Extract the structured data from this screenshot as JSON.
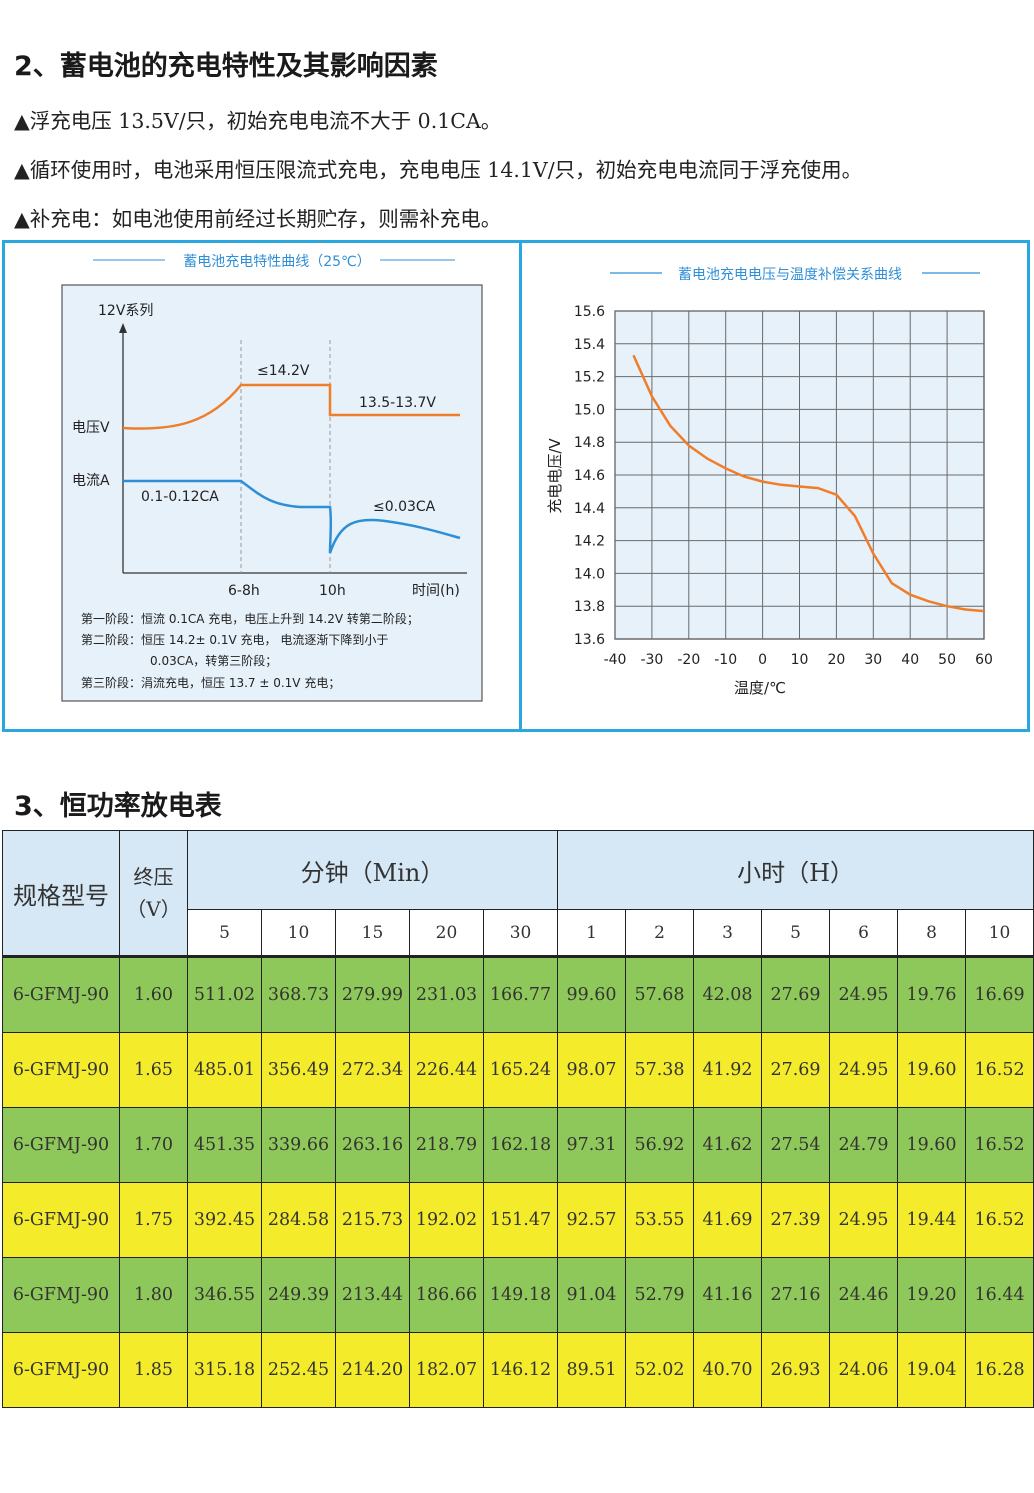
{
  "section2": {
    "title": "2、蓄电池的充电特性及其影响因素",
    "bullets": [
      "▲浮充电压 13.5V/只，初始充电电流不大于 0.1CA。",
      "▲循环使用时，电池采用恒压限流式充电，充电电压 14.1V/只，初始充电电流同于浮充使用。",
      "▲补充电：如电池使用前经过长期贮存，则需补充电。"
    ]
  },
  "chart_data": [
    {
      "type": "line",
      "title": "蓄电池充电特性曲线（25℃）",
      "series_label": "12V系列",
      "ylabels": [
        "电压V",
        "电流A"
      ],
      "xticks": [
        "6-8h",
        "10h"
      ],
      "xlabel": "时间(h)",
      "annotations": [
        "≤14.2V",
        "13.5-13.7V",
        "0.1-0.12CA",
        "≤0.03CA"
      ],
      "notes": [
        "第一阶段：恒流 0.1CA 充电，电压上升到 14.2V 转第二阶段；",
        "第二阶段：恒压 14.2± 0.1V 充电，   电流逐渐下降到小于",
        "0.03CA，转第三阶段；",
        "第三阶段：涓流充电，恒压 13.7 ± 0.1V 充电；"
      ],
      "colors": {
        "voltage": "#f07d2a",
        "current": "#2f8fd6"
      }
    },
    {
      "type": "line",
      "title": "蓄电池充电电压与温度补偿关系曲线",
      "xlabel": "温度/℃",
      "ylabel": "充电电压/V",
      "xlim": [
        -40,
        60
      ],
      "ylim": [
        13.6,
        15.6
      ],
      "xticks": [
        "-40",
        "-30",
        "-20",
        "-10",
        "0",
        "10",
        "20",
        "30",
        "40",
        "50",
        "60"
      ],
      "yticks": [
        "15.6",
        "15.4",
        "15.2",
        "15.0",
        "14.8",
        "14.6",
        "14.4",
        "14.2",
        "14.0",
        "13.8",
        "13.6"
      ],
      "grid": true,
      "x": [
        -35,
        -30,
        -25,
        -20,
        -15,
        -10,
        -5,
        0,
        5,
        10,
        15,
        20,
        25,
        30,
        35,
        40,
        45,
        50,
        55,
        60
      ],
      "y": [
        15.33,
        15.08,
        14.9,
        14.78,
        14.7,
        14.64,
        14.59,
        14.56,
        14.54,
        14.53,
        14.52,
        14.48,
        14.35,
        14.12,
        13.94,
        13.87,
        13.83,
        13.8,
        13.78,
        13.77
      ],
      "colors": {
        "line": "#f07d2a"
      }
    }
  ],
  "section3": {
    "title": "3、恒功率放电表",
    "header": {
      "model": "规格型号",
      "voltage": "终压（V）",
      "minutes": "分钟（Min）",
      "hours": "小时（H）",
      "minute_cols": [
        "5",
        "10",
        "15",
        "20",
        "30"
      ],
      "hour_cols": [
        "1",
        "2",
        "3",
        "5",
        "6",
        "8",
        "10"
      ]
    },
    "rows": [
      {
        "model": "6-GFMJ-90",
        "v": "1.60",
        "vals": [
          "511.02",
          "368.73",
          "279.99",
          "231.03",
          "166.77",
          "99.60",
          "57.68",
          "42.08",
          "27.69",
          "24.95",
          "19.76",
          "16.69"
        ]
      },
      {
        "model": "6-GFMJ-90",
        "v": "1.65",
        "vals": [
          "485.01",
          "356.49",
          "272.34",
          "226.44",
          "165.24",
          "98.07",
          "57.38",
          "41.92",
          "27.69",
          "24.95",
          "19.60",
          "16.52"
        ]
      },
      {
        "model": "6-GFMJ-90",
        "v": "1.70",
        "vals": [
          "451.35",
          "339.66",
          "263.16",
          "218.79",
          "162.18",
          "97.31",
          "56.92",
          "41.62",
          "27.54",
          "24.79",
          "19.60",
          "16.52"
        ]
      },
      {
        "model": "6-GFMJ-90",
        "v": "1.75",
        "vals": [
          "392.45",
          "284.58",
          "215.73",
          "192.02",
          "151.47",
          "92.57",
          "53.55",
          "41.69",
          "27.39",
          "24.95",
          "19.44",
          "16.52"
        ]
      },
      {
        "model": "6-GFMJ-90",
        "v": "1.80",
        "vals": [
          "346.55",
          "249.39",
          "213.44",
          "186.66",
          "149.18",
          "91.04",
          "52.79",
          "41.16",
          "27.16",
          "24.46",
          "19.20",
          "16.44"
        ]
      },
      {
        "model": "6-GFMJ-90",
        "v": "1.85",
        "vals": [
          "315.18",
          "252.45",
          "214.20",
          "182.07",
          "146.12",
          "89.51",
          "52.02",
          "40.70",
          "26.93",
          "24.06",
          "19.04",
          "16.28"
        ]
      }
    ]
  }
}
